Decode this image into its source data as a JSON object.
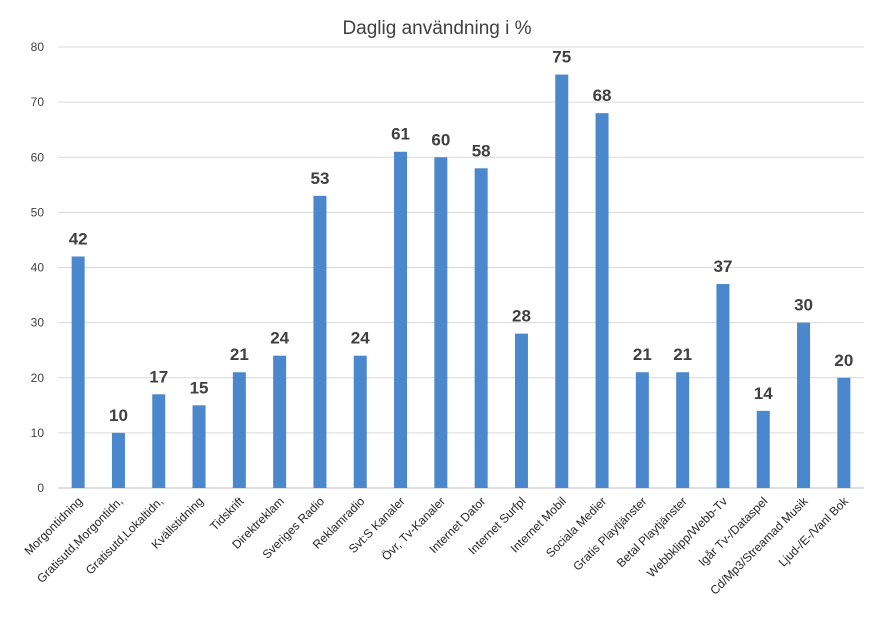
{
  "chart_data": {
    "type": "bar",
    "title": "Daglig användning i %",
    "xlabel": "",
    "ylabel": "",
    "ylim": [
      0,
      80
    ],
    "yticks": [
      0,
      10,
      20,
      30,
      40,
      50,
      60,
      70,
      80
    ],
    "grid": true,
    "legend": "none",
    "bar_color": "#4a87cc",
    "categories": [
      "Morgontidning",
      "Gratisutd,Morgontidn,",
      "Gratisutd,Lokaltidn,",
      "Kvällstidning",
      "Tidskrift",
      "Direktreklam",
      "Sveriges Radio",
      "Reklamradio",
      "Svt:S Kanaler",
      "Övr, Tv-Kanaler",
      "Internet Dator",
      "Internet Surfpl",
      "Internet Mobil",
      "Sociala Medier",
      "Gratis Playtjänster",
      "Betal Playtjänster",
      "Webbklipp/Webb-Tv",
      "Igår Tv-/Dataspel",
      "Cd/Mp3/Streamad Musik",
      "Ljud-/E-/Vanl Bok"
    ],
    "values": [
      42,
      10,
      17,
      15,
      21,
      24,
      53,
      24,
      61,
      60,
      58,
      28,
      75,
      68,
      21,
      21,
      37,
      14,
      30,
      20
    ],
    "data_labels": [
      "42",
      "10",
      "17",
      "15",
      "21",
      "24",
      "53",
      "24",
      "61",
      "60",
      "58",
      "28",
      "75",
      "68",
      "21",
      "21",
      "37",
      "14",
      "30",
      "20"
    ]
  }
}
